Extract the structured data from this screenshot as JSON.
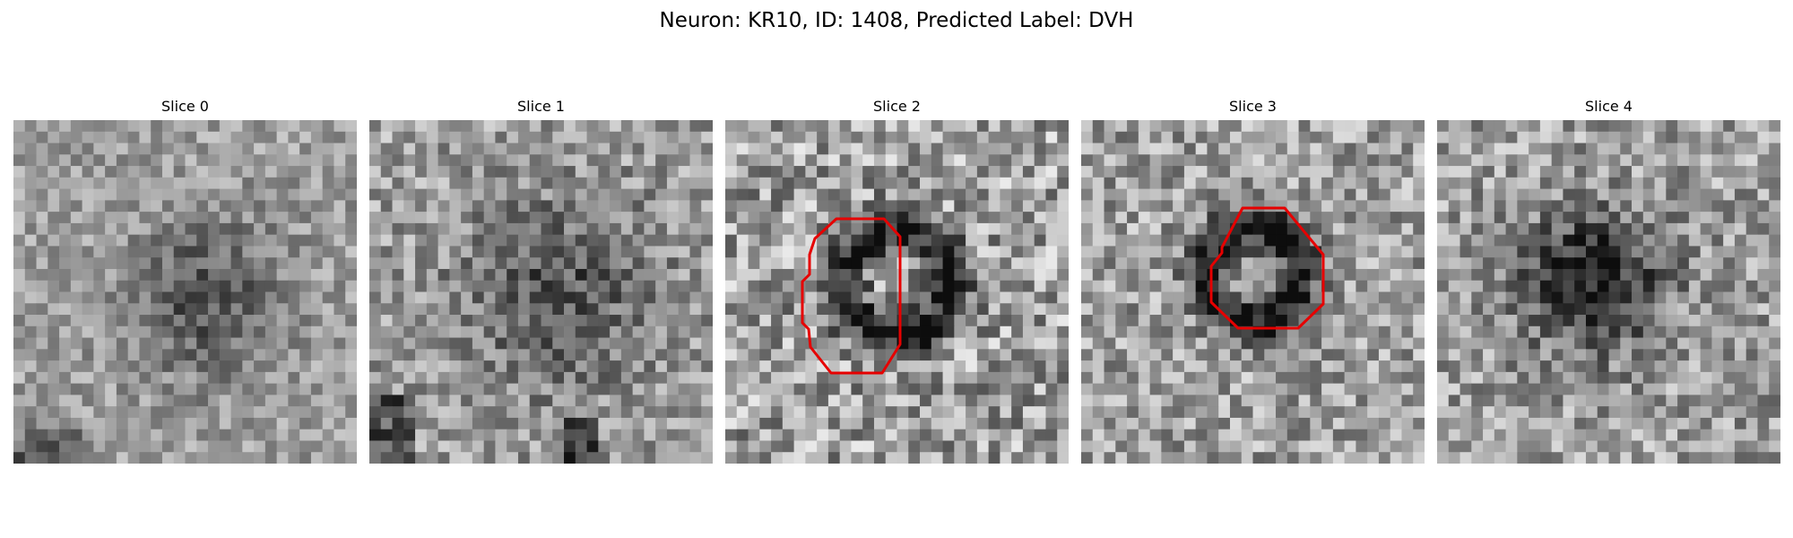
{
  "figure": {
    "title": "Neuron: KR10, ID: 1408, Predicted Label: DVH"
  },
  "panels": [
    {
      "title": "Slice 0",
      "has_outline": false,
      "dark_blob": [
        0.56,
        0.52,
        0.22,
        0.3
      ],
      "contrast": 0.35
    },
    {
      "title": "Slice 1",
      "has_outline": false,
      "dark_blob": [
        0.55,
        0.5,
        0.28,
        0.3
      ],
      "contrast": 0.45
    },
    {
      "title": "Slice 2",
      "has_outline": true,
      "ring": [
        0.5,
        0.47,
        0.32,
        0.55
      ],
      "contrast": 0.6
    },
    {
      "title": "Slice 3",
      "has_outline": true,
      "ring": [
        0.5,
        0.45,
        0.28,
        0.55
      ],
      "contrast": 0.5
    },
    {
      "title": "Slice 4",
      "has_outline": false,
      "dark_blob": [
        0.45,
        0.47,
        0.2,
        0.55
      ],
      "contrast": 0.5
    }
  ],
  "outline_color": "#e60000",
  "image_grid": 30
}
